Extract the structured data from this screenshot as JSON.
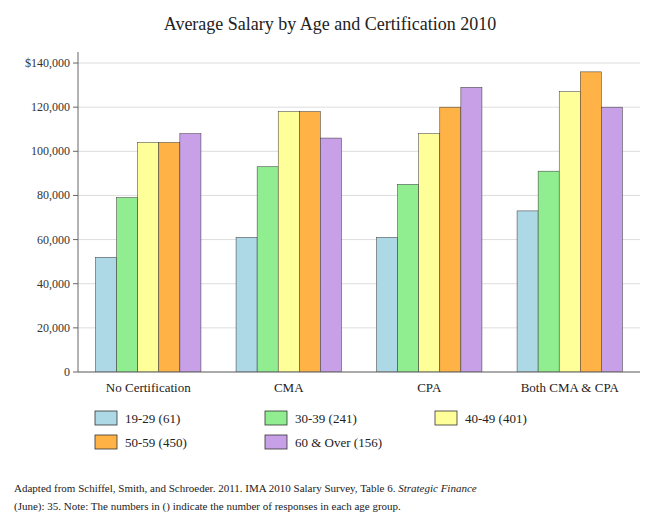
{
  "chart_data": {
    "type": "bar",
    "title": "Average Salary by Age and Certification 2010",
    "categories": [
      "No Certification",
      "CMA",
      "CPA",
      "Both CMA & CPA"
    ],
    "series": [
      {
        "name": "19-29 (61)",
        "color": "#add8e6",
        "values": [
          52000,
          61000,
          61000,
          73000
        ]
      },
      {
        "name": "30-39 (241)",
        "color": "#90ee90",
        "values": [
          79000,
          93000,
          85000,
          91000
        ]
      },
      {
        "name": "40-49 (401)",
        "color": "#ffff99",
        "values": [
          104000,
          118000,
          108000,
          127000
        ]
      },
      {
        "name": "50-59 (450)",
        "color": "#ffb347",
        "values": [
          104000,
          118000,
          120000,
          136000
        ]
      },
      {
        "name": "60 & Over (156)",
        "color": "#c8a0e8",
        "values": [
          108000,
          106000,
          129000,
          120000
        ]
      }
    ],
    "ylim": [
      0,
      145000
    ],
    "yticks": [
      0,
      {
        "value": 20000,
        "label": "20,000"
      },
      {
        "value": 40000,
        "label": "40,000"
      },
      {
        "value": 60000,
        "label": "60,000"
      },
      {
        "value": 80000,
        "label": "80,000"
      },
      {
        "value": 100000,
        "label": "100,000"
      },
      {
        "value": 120000,
        "label": "120,000"
      },
      {
        "value": 140000,
        "label": "$140,000"
      }
    ],
    "grid": true,
    "legend": "bottom",
    "annotations": [
      "Adapted from Schiffel, Smith, and Schroeder. 2011. IMA 2010 Salary Survey, Table 6.  ",
      "Strategic Finance",
      "(June): 35.  Note:  The numbers in () indicate the number of responses in each age group."
    ]
  }
}
